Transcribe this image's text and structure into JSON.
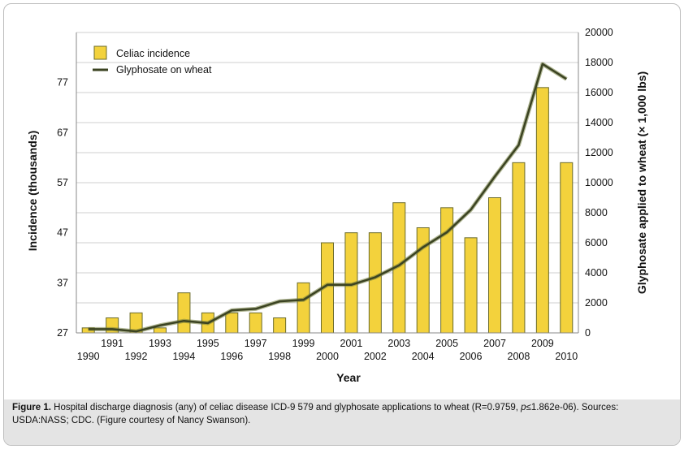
{
  "caption": {
    "label": "Figure 1.",
    "text_a": " Hospital discharge diagnosis (any) of celiac disease ICD-9 579 and glyphosate applications to wheat (R=0.9759, ",
    "p_symbol": "p",
    "text_b": "≤1.862e-06). Sources: USDA:NASS; CDC. (Figure courtesy of Nancy Swanson)."
  },
  "colors": {
    "bar_fill": "#f3d23c",
    "bar_stroke": "#6b6b2a",
    "line": "#3b4322",
    "grid": "#cfcfcf",
    "caption_bg": "#e4e4e4"
  },
  "chart_data": {
    "type": "bar",
    "title": "",
    "xlabel": "Year",
    "ylabel": "Incidence (thousands)",
    "ylabel_right": "Glyphosate applied to wheat (× 1,000 lbs)",
    "categories": [
      "1990",
      "1991",
      "1992",
      "1993",
      "1994",
      "1995",
      "1996",
      "1997",
      "1998",
      "1999",
      "2000",
      "2001",
      "2002",
      "2003",
      "2004",
      "2005",
      "2006",
      "2007",
      "2008",
      "2009",
      "2010"
    ],
    "ylim": [
      27,
      87
    ],
    "yticks": [
      27,
      37,
      47,
      57,
      67,
      77
    ],
    "ylim_right": [
      0,
      20000
    ],
    "yticks_right": [
      0,
      2000,
      4000,
      6000,
      8000,
      10000,
      12000,
      14000,
      16000,
      18000,
      20000
    ],
    "grid": true,
    "legend_position": "top-left",
    "series": [
      {
        "name": "Celiac incidence",
        "type": "bar",
        "axis": "left",
        "values": [
          28,
          30,
          31,
          28,
          35,
          31,
          31,
          31,
          30,
          37,
          45,
          47,
          47,
          53,
          48,
          52,
          46,
          54,
          61,
          76,
          61
        ]
      },
      {
        "name": "Glyphosate on wheat",
        "type": "line",
        "axis": "right",
        "values": [
          250,
          250,
          100,
          500,
          800,
          650,
          1500,
          1600,
          2100,
          2200,
          3200,
          3200,
          3700,
          4500,
          5700,
          6700,
          8200,
          10400,
          12500,
          17900,
          16900
        ]
      }
    ]
  }
}
